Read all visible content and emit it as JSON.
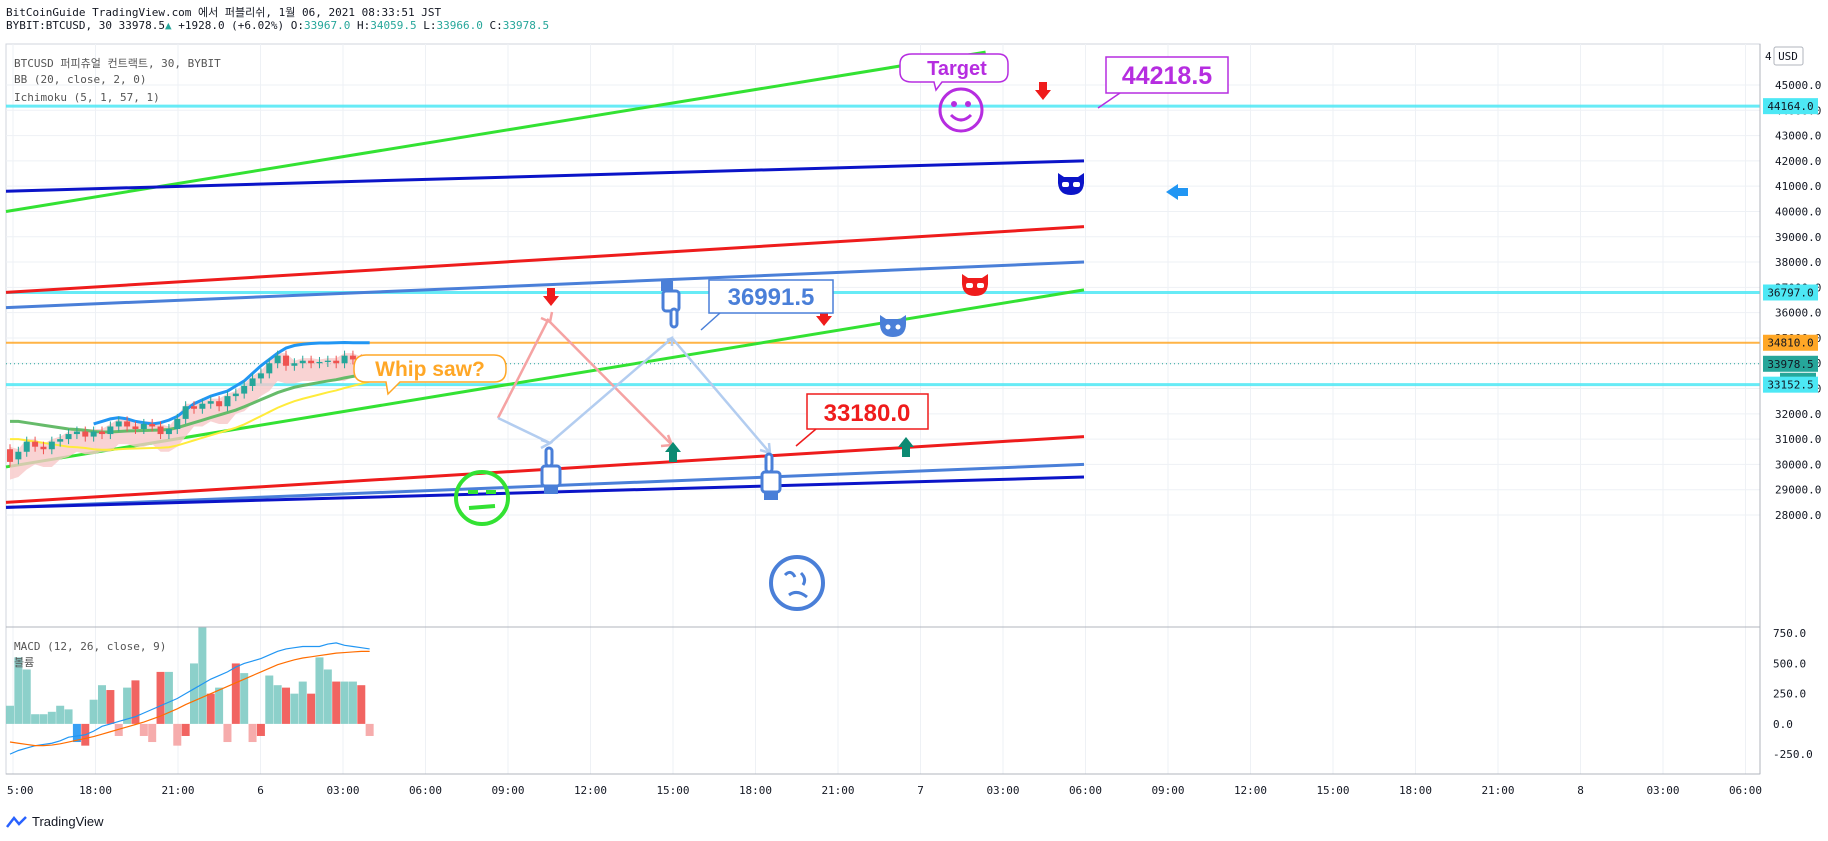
{
  "header": {
    "line1": "BitCoinGuide TradingView.com 에서 퍼블리쉬, 1월 06, 2021 08:33:51 JST",
    "symbol": "BYBIT:BTCUSD, 30",
    "last": "33978.5",
    "change": "+1928.0 (+6.02%)",
    "o_label": "O:",
    "o": "33967.0",
    "h_label": "H:",
    "h": "34059.5",
    "l_label": "L:",
    "l": "33966.0",
    "c_label": "C:",
    "c": "33978.5"
  },
  "legend": {
    "title": "BTCUSD 퍼피츄얼 컨트랙트, 30, BYBIT",
    "bb": "BB (20, close, 2, 0)",
    "ichimoku": "Ichimoku (5, 1, 57, 1)",
    "macd": "MACD (12, 26, close, 9)",
    "macd_sub": "볼륨"
  },
  "annotations": {
    "target": "Target",
    "whipsaw": "Whip saw?",
    "price_44218": "44218.5",
    "price_36991": "36991.5",
    "price_33180": "33180.0"
  },
  "price_axis": {
    "currency": "USD",
    "ticks": [
      "45000.0",
      "44000.0",
      "43000.0",
      "42000.0",
      "41000.0",
      "40000.0",
      "39000.0",
      "38000.0",
      "37000.0",
      "36000.0",
      "35000.0",
      "34000.0",
      "33000.0",
      "32000.0",
      "31000.0",
      "30000.0",
      "29000.0",
      "28000.0"
    ],
    "top_partial": "4",
    "badges": [
      {
        "label": "44164.0",
        "color": "#4de8f5",
        "text_color": "#131722"
      },
      {
        "label": "36797.0",
        "color": "#4de8f5",
        "text_color": "#131722"
      },
      {
        "label": "34810.0",
        "color": "#ffa726",
        "text_color": "#131722"
      },
      {
        "label": "33978.5",
        "color": "#26a69a",
        "text_color": "#ffffff"
      },
      {
        "label": "26:11",
        "color": "#26a69a",
        "text_color": "#ffffff"
      },
      {
        "label": "33152.5",
        "color": "#4de8f5",
        "text_color": "#131722"
      }
    ]
  },
  "macd_axis": {
    "ticks": [
      "750.0",
      "500.0",
      "250.0",
      "0.0",
      "-250.0"
    ]
  },
  "time_axis": {
    "ticks": [
      "5:00",
      "18:00",
      "21:00",
      "6",
      "03:00",
      "06:00",
      "09:00",
      "12:00",
      "15:00",
      "18:00",
      "21:00",
      "7",
      "03:00",
      "06:00",
      "09:00",
      "12:00",
      "15:00",
      "18:00",
      "21:00",
      "8",
      "03:00",
      "06:00"
    ]
  },
  "colors": {
    "grid": "#eef1f5",
    "green_line": "#33e233",
    "blue_line": "#0b14c8",
    "red_line": "#ee1c1c",
    "steel_line": "#4a7fd8",
    "cyan_line": "#4de8f5",
    "orange_line": "#ffa726",
    "up": "#26a69a",
    "down": "#ef5350"
  },
  "chart_data": {
    "type": "line",
    "title": "BTCUSD 퍼피츄얼 컨트랙트, 30, BYBIT",
    "horizontal_levels": [
      44164.0,
      36797.0,
      34810.0,
      33152.5
    ],
    "last_price": 33978.5,
    "ylim": [
      27600,
      46000
    ],
    "macd_ylim": [
      -340,
      760
    ],
    "trendlines": [
      {
        "color": "green",
        "from": {
          "time": "5 05:00",
          "price": 40000
        },
        "to": {
          "time": "8 00:00",
          "price": 46300
        }
      },
      {
        "color": "blue",
        "from": {
          "time": "5 05:00",
          "price": 40800
        },
        "to": {
          "time": "8 06:00",
          "price": 42000
        }
      },
      {
        "color": "red",
        "from": {
          "time": "5 05:00",
          "price": 36800
        },
        "to": {
          "time": "8 06:00",
          "price": 39400
        }
      },
      {
        "color": "steel",
        "from": {
          "time": "5 05:00",
          "price": 36200
        },
        "to": {
          "time": "8 06:00",
          "price": 38000
        }
      },
      {
        "color": "green",
        "from": {
          "time": "5 05:00",
          "price": 29900
        },
        "to": {
          "time": "8 06:00",
          "price": 36900
        }
      },
      {
        "color": "red",
        "from": {
          "time": "5 05:00",
          "price": 28500
        },
        "to": {
          "time": "8 06:00",
          "price": 31100
        }
      },
      {
        "color": "steel",
        "from": {
          "time": "5 05:00",
          "price": 28300
        },
        "to": {
          "time": "8 06:00",
          "price": 30000
        }
      },
      {
        "color": "blue",
        "from": {
          "time": "5 05:00",
          "price": 28300
        },
        "to": {
          "time": "8 06:00",
          "price": 29500
        }
      }
    ],
    "candles": [
      {
        "o": 30600,
        "c": 30100
      },
      {
        "o": 30200,
        "c": 30500
      },
      {
        "o": 30500,
        "c": 30900
      },
      {
        "o": 30900,
        "c": 30700
      },
      {
        "o": 30700,
        "c": 30600
      },
      {
        "o": 30600,
        "c": 30900
      },
      {
        "o": 30900,
        "c": 31000
      },
      {
        "o": 31000,
        "c": 31200
      },
      {
        "o": 31200,
        "c": 31300
      },
      {
        "o": 31300,
        "c": 31100
      },
      {
        "o": 31100,
        "c": 31300
      },
      {
        "o": 31300,
        "c": 31200
      },
      {
        "o": 31200,
        "c": 31500
      },
      {
        "o": 31500,
        "c": 31700
      },
      {
        "o": 31700,
        "c": 31500
      },
      {
        "o": 31500,
        "c": 31400
      },
      {
        "o": 31400,
        "c": 31600
      },
      {
        "o": 31600,
        "c": 31500
      },
      {
        "o": 31500,
        "c": 31200
      },
      {
        "o": 31200,
        "c": 31400
      },
      {
        "o": 31400,
        "c": 31800
      },
      {
        "o": 31800,
        "c": 32300
      },
      {
        "o": 32300,
        "c": 32200
      },
      {
        "o": 32200,
        "c": 32400
      },
      {
        "o": 32400,
        "c": 32500
      },
      {
        "o": 32500,
        "c": 32300
      },
      {
        "o": 32300,
        "c": 32700
      },
      {
        "o": 32700,
        "c": 32800
      },
      {
        "o": 32800,
        "c": 33100
      },
      {
        "o": 33100,
        "c": 33400
      },
      {
        "o": 33400,
        "c": 33600
      },
      {
        "o": 33600,
        "c": 34000
      },
      {
        "o": 34000,
        "c": 34300
      },
      {
        "o": 34300,
        "c": 33900
      },
      {
        "o": 33900,
        "c": 34000
      },
      {
        "o": 34000,
        "c": 34100
      },
      {
        "o": 34100,
        "c": 34000
      },
      {
        "o": 34000,
        "c": 34050
      },
      {
        "o": 34050,
        "c": 34100
      },
      {
        "o": 34100,
        "c": 34000
      },
      {
        "o": 34000,
        "c": 34300
      },
      {
        "o": 34300,
        "c": 34150
      },
      {
        "o": 34150,
        "c": 34050
      },
      {
        "o": 34050,
        "c": 33980
      }
    ],
    "bb_upper": [
      null,
      null,
      null,
      null,
      null,
      null,
      null,
      null,
      null,
      null,
      31600,
      31700,
      31800,
      31850,
      31800,
      31700,
      31650,
      31600,
      31650,
      31750,
      31900,
      32150,
      32400,
      32550,
      32700,
      32800,
      32900,
      33100,
      33300,
      33600,
      33900,
      34150,
      34400,
      34600,
      34700,
      34750,
      34780,
      34800,
      34800,
      34810,
      34820,
      34810,
      34810,
      34810
    ],
    "bb_basis": [
      31700,
      31700,
      31650,
      31600,
      31550,
      31500,
      31450,
      31400,
      31380,
      31350,
      31300,
      31280,
      31280,
      31300,
      31320,
      31330,
      31340,
      31350,
      31360,
      31380,
      31450,
      31550,
      31650,
      31750,
      31850,
      31950,
      32050,
      32150,
      32280,
      32420,
      32560,
      32700,
      32840,
      32950,
      33050,
      33120,
      33180,
      33240,
      33300,
      33350,
      33420,
      33480,
      33540,
      33600
    ],
    "macd_hist": [
      150,
      550,
      450,
      80,
      80,
      100,
      150,
      120,
      -150,
      -180,
      200,
      320,
      280,
      -100,
      300,
      360,
      -100,
      -150,
      430,
      430,
      -180,
      -100,
      500,
      800,
      250,
      300,
      -150,
      500,
      420,
      -150,
      -100,
      400,
      320,
      300,
      250,
      350,
      250,
      550,
      450,
      350,
      350,
      350,
      320,
      -100
    ],
    "macd_line": [
      -250,
      -220,
      -200,
      -180,
      -170,
      -160,
      -140,
      -110,
      -100,
      -90,
      -60,
      -20,
      0,
      20,
      40,
      60,
      90,
      120,
      150,
      180,
      210,
      250,
      290,
      330,
      370,
      400,
      430,
      470,
      500,
      520,
      540,
      570,
      600,
      620,
      630,
      640,
      640,
      640,
      660,
      670,
      650,
      640,
      630,
      620
    ],
    "signal_line": [
      -150,
      -160,
      -170,
      -180,
      -180,
      -175,
      -165,
      -150,
      -135,
      -120,
      -105,
      -85,
      -65,
      -45,
      -25,
      -5,
      15,
      40,
      65,
      95,
      125,
      160,
      190,
      220,
      250,
      280,
      310,
      340,
      370,
      400,
      430,
      460,
      490,
      510,
      530,
      545,
      555,
      565,
      575,
      585,
      590,
      595,
      600,
      600
    ]
  }
}
